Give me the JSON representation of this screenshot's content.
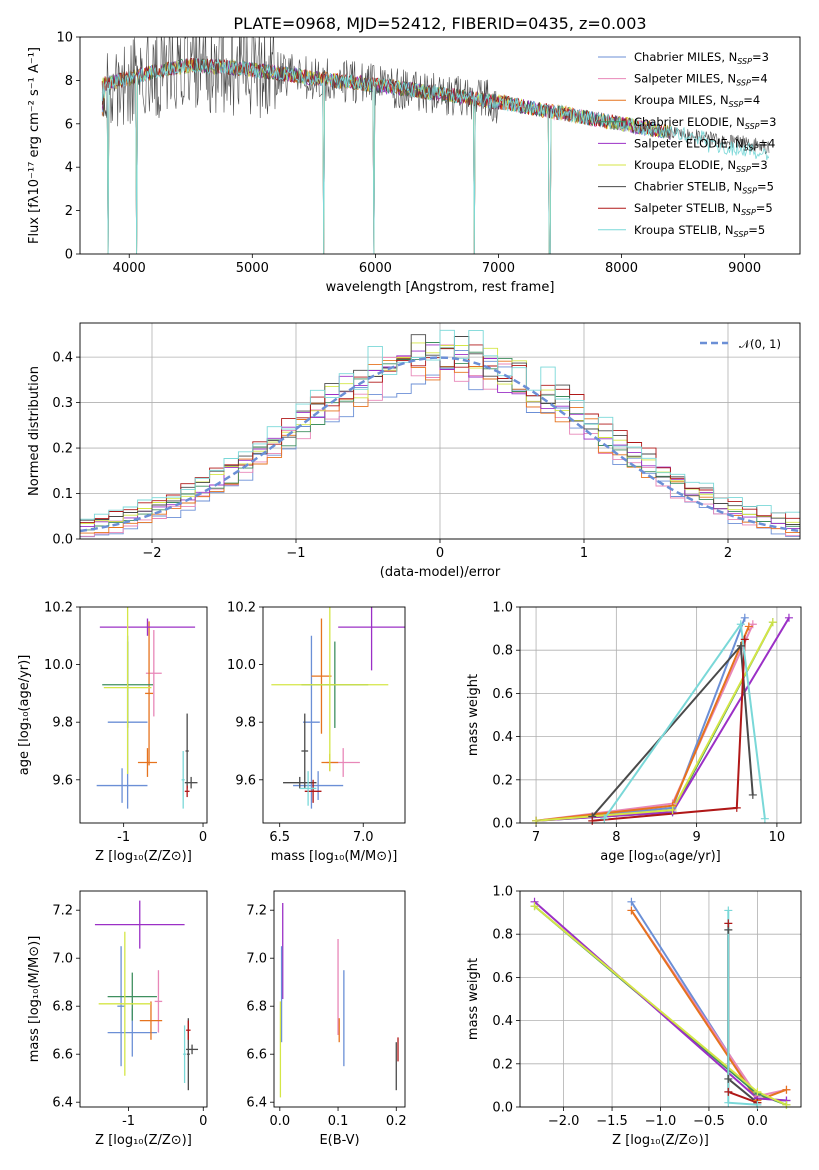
{
  "title": "PLATE=0968, MJD=52412, FIBERID=0435, z=0.003",
  "colors": [
    "#6b8fd6",
    "#e887b8",
    "#e6731e",
    "#3f8f5f",
    "#9b30c6",
    "#d4e646",
    "#4a4a4a",
    "#b01818",
    "#7ad8d8"
  ],
  "legend_names": [
    "Chabrier MILES, N_SSP=3",
    "Salpeter MILES, N_SSP=4",
    "Kroupa MILES, N_SSP=4",
    "Chabrier ELODIE, N_SSP=3",
    "Salpeter ELODIE, N_SSP=4",
    "Kroupa ELODIE, N_SSP=3",
    "Chabrier STELIB, N_SSP=5",
    "Salpeter STELIB, N_SSP=5",
    "Kroupa STELIB, N_SSP=5"
  ],
  "legend_entries": [
    {
      "pre": "Chabrier MILES, N",
      "sub": "SSP",
      "post": "=3"
    },
    {
      "pre": "Salpeter MILES, N",
      "sub": "SSP",
      "post": "=4"
    },
    {
      "pre": "Kroupa MILES, N",
      "sub": "SSP",
      "post": "=4"
    },
    {
      "pre": "Chabrier ELODIE, N",
      "sub": "SSP",
      "post": "=3"
    },
    {
      "pre": "Salpeter ELODIE, N",
      "sub": "SSP",
      "post": "=4"
    },
    {
      "pre": "Kroupa ELODIE, N",
      "sub": "SSP",
      "post": "=3"
    },
    {
      "pre": "Chabrier STELIB, N",
      "sub": "SSP",
      "post": "=5"
    },
    {
      "pre": "Salpeter STELIB, N",
      "sub": "SSP",
      "post": "=5"
    },
    {
      "pre": "Kroupa STELIB, N",
      "sub": "SSP",
      "post": "=5"
    }
  ],
  "labels": {
    "spec_x": "wavelength [Angstrom, rest frame]",
    "spec_y": "Flux [fλ10⁻¹⁷ erg cm⁻² s⁻¹ A⁻¹]",
    "hist_x": "(data-model)/error",
    "hist_y": "Normed distribution",
    "hist_legend": "𝒩(0, 1)",
    "z_axis": "Z [log₁₀(Z/Z⊙)]",
    "age_axis": "age  [log₁₀(age/yr)]",
    "mass_axis": "mass [log₁₀(M/M⊙)]",
    "ebv_axis": "E(B-V)",
    "weight_axis": "mass weight"
  },
  "chart_data": [
    {
      "type": "line",
      "panel": "spectrum",
      "xlabel": "wavelength [Angstrom, rest frame]",
      "ylabel": "Flux [fλ10⁻¹⁷ erg cm⁻² s⁻¹ A⁻¹]",
      "xlim": [
        3600,
        9450
      ],
      "ylim": [
        0,
        10
      ],
      "xticks": [
        4000,
        5000,
        6000,
        7000,
        8000,
        9000
      ],
      "yticks": [
        0,
        2,
        4,
        6,
        8,
        10
      ],
      "data_anchor_x": [
        3780,
        4000,
        4200,
        4500,
        4800,
        5000,
        5500,
        6000,
        6500,
        7000,
        7400,
        7800,
        8200,
        8600,
        9000,
        9200
      ],
      "data_anchor_y": [
        7.8,
        8.1,
        8.4,
        8.7,
        8.6,
        8.5,
        8.1,
        7.8,
        7.4,
        7.0,
        6.6,
        6.2,
        5.8,
        5.4,
        5.1,
        4.9
      ],
      "dips": [
        [
          3795,
          0
        ],
        [
          3830,
          0
        ],
        [
          4062,
          0
        ],
        [
          5580,
          0
        ],
        [
          5990,
          0
        ],
        [
          6805,
          0
        ],
        [
          7415,
          0
        ]
      ]
    },
    {
      "type": "bar",
      "panel": "residual_histogram",
      "xlabel": "(data-model)/error",
      "ylabel": "Normed distribution",
      "xlim": [
        -2.5,
        2.5
      ],
      "ylim": [
        0,
        0.475
      ],
      "xticks": [
        -2,
        -1,
        0,
        1,
        2
      ],
      "yticks": [
        0.0,
        0.1,
        0.2,
        0.3,
        0.4
      ],
      "bin_width": 0.1,
      "reference_curve": "N(0,1)"
    },
    {
      "type": "scatter",
      "panel": "Z_vs_age",
      "xlabel": "Z [log₁₀(Z/Z⊙)]",
      "ylabel": "age  [log₁₀(age/yr)]",
      "xlim": [
        -1.55,
        0.05
      ],
      "ylim": [
        9.45,
        10.2
      ],
      "xticks": [
        -1,
        0
      ],
      "yticks": [
        9.6,
        9.8,
        10.0,
        10.2
      ],
      "points": [
        {
          "series": 0,
          "x": -0.95,
          "y": 9.8,
          "xerr": 0.25,
          "yerr": 0.3
        },
        {
          "series": 0,
          "x": -1.02,
          "y": 9.58,
          "xerr": 0.32,
          "yerr": 0.06
        },
        {
          "series": 1,
          "x": -0.62,
          "y": 9.97,
          "xerr": 0.1,
          "yerr": 0.15
        },
        {
          "series": 2,
          "x": -0.7,
          "y": 9.66,
          "xerr": 0.12,
          "yerr": 0.05
        },
        {
          "series": 2,
          "x": -0.68,
          "y": 9.9,
          "xerr": 0.05,
          "yerr": 0.25
        },
        {
          "series": 3,
          "x": -0.95,
          "y": 9.93,
          "xerr": 0.32,
          "yerr": 0.15
        },
        {
          "series": 4,
          "x": -0.7,
          "y": 10.13,
          "xerr": 0.6,
          "yerr": 0.03
        },
        {
          "series": 5,
          "x": -0.95,
          "y": 9.92,
          "xerr": 0.3,
          "yerr": 0.3
        },
        {
          "series": 6,
          "x": -0.2,
          "y": 9.7,
          "xerr": 0.02,
          "yerr": 0.13
        },
        {
          "series": 6,
          "x": -0.15,
          "y": 9.59,
          "xerr": 0.08,
          "yerr": 0.02
        },
        {
          "series": 7,
          "x": -0.2,
          "y": 9.56,
          "xerr": 0.03,
          "yerr": 0.02
        },
        {
          "series": 8,
          "x": -0.25,
          "y": 9.6,
          "xerr": 0.02,
          "yerr": 0.1
        }
      ]
    },
    {
      "type": "scatter",
      "panel": "mass_vs_age",
      "xlabel": "mass [log₁₀(M/M⊙)]",
      "ylabel": "age  [log₁₀(age/yr)]",
      "xlim": [
        6.4,
        7.25
      ],
      "ylim": [
        9.45,
        10.2
      ],
      "xticks": [
        6.5,
        7.0
      ],
      "yticks": [
        9.6,
        9.8,
        10.0,
        10.2
      ],
      "points": [
        {
          "series": 0,
          "x": 6.73,
          "y": 9.58,
          "xerr": 0.15,
          "yerr": 0.05
        },
        {
          "series": 0,
          "x": 6.69,
          "y": 9.8,
          "xerr": 0.05,
          "yerr": 0.3
        },
        {
          "series": 1,
          "x": 6.88,
          "y": 9.66,
          "xerr": 0.1,
          "yerr": 0.05
        },
        {
          "series": 2,
          "x": 6.75,
          "y": 9.96,
          "xerr": 0.06,
          "yerr": 0.2
        },
        {
          "series": 2,
          "x": 6.8,
          "y": 9.66,
          "xerr": 0.05,
          "yerr": 0.03
        },
        {
          "series": 3,
          "x": 6.83,
          "y": 9.93,
          "xerr": 0.2,
          "yerr": 0.15
        },
        {
          "series": 4,
          "x": 7.05,
          "y": 10.13,
          "xerr": 0.2,
          "yerr": 0.15
        },
        {
          "series": 5,
          "x": 6.8,
          "y": 9.93,
          "xerr": 0.35,
          "yerr": 0.3
        },
        {
          "series": 6,
          "x": 6.65,
          "y": 9.7,
          "xerr": 0.02,
          "yerr": 0.13
        },
        {
          "series": 6,
          "x": 6.62,
          "y": 9.59,
          "xerr": 0.1,
          "yerr": 0.02
        },
        {
          "series": 7,
          "x": 6.7,
          "y": 9.56,
          "xerr": 0.05,
          "yerr": 0.04
        },
        {
          "series": 8,
          "x": 6.67,
          "y": 9.57,
          "xerr": 0.05,
          "yerr": 0.06
        }
      ]
    },
    {
      "type": "line",
      "panel": "age_vs_weight",
      "xlabel": "age  [log₁₀(age/yr)]",
      "ylabel": "mass weight",
      "xlim": [
        6.8,
        10.3
      ],
      "ylim": [
        0,
        1
      ],
      "xticks": [
        7,
        8,
        9,
        10
      ],
      "yticks": [
        0.0,
        0.2,
        0.4,
        0.6,
        0.8,
        1.0
      ],
      "series": [
        {
          "series": 0,
          "x": [
            7.0,
            8.7,
            9.6
          ],
          "y": [
            0.01,
            0.07,
            0.95
          ]
        },
        {
          "series": 1,
          "x": [
            7.0,
            8.7,
            9.7
          ],
          "y": [
            0.01,
            0.09,
            0.92
          ]
        },
        {
          "series": 2,
          "x": [
            7.0,
            8.7,
            9.65
          ],
          "y": [
            0.01,
            0.08,
            0.91
          ]
        },
        {
          "series": 3,
          "x": [
            7.0,
            8.7,
            9.95
          ],
          "y": [
            0.01,
            0.05,
            0.93
          ]
        },
        {
          "series": 4,
          "x": [
            7.0,
            8.7,
            10.15
          ],
          "y": [
            0.01,
            0.05,
            0.95
          ]
        },
        {
          "series": 5,
          "x": [
            7.0,
            8.7,
            9.95
          ],
          "y": [
            0.01,
            0.06,
            0.93
          ]
        },
        {
          "series": 6,
          "x": [
            7.7,
            9.55,
            9.7
          ],
          "y": [
            0.03,
            0.82,
            0.13
          ]
        },
        {
          "series": 7,
          "x": [
            7.7,
            9.5,
            9.6
          ],
          "y": [
            0.01,
            0.07,
            0.85
          ]
        },
        {
          "series": 8,
          "x": [
            7.85,
            9.55,
            9.85
          ],
          "y": [
            0.02,
            0.92,
            0.02
          ]
        }
      ]
    },
    {
      "type": "scatter",
      "panel": "Z_vs_mass",
      "xlabel": "Z [log₁₀(Z/Z⊙)]",
      "ylabel": "mass [log₁₀(M/M⊙)]",
      "xlim": [
        -1.65,
        0.05
      ],
      "ylim": [
        6.38,
        7.28
      ],
      "xticks": [
        -1,
        0
      ],
      "yticks": [
        6.4,
        6.6,
        6.8,
        7.0,
        7.2
      ],
      "points": [
        {
          "series": 0,
          "x": -0.95,
          "y": 6.69,
          "xerr": 0.33,
          "yerr": 0.1
        },
        {
          "series": 0,
          "x": -1.1,
          "y": 6.8,
          "xerr": 0.05,
          "yerr": 0.25
        },
        {
          "series": 1,
          "x": -0.6,
          "y": 6.82,
          "xerr": 0.05,
          "yerr": 0.13
        },
        {
          "series": 2,
          "x": -0.7,
          "y": 6.74,
          "xerr": 0.15,
          "yerr": 0.08
        },
        {
          "series": 3,
          "x": -0.95,
          "y": 6.84,
          "xerr": 0.33,
          "yerr": 0.1
        },
        {
          "series": 4,
          "x": -0.85,
          "y": 7.14,
          "xerr": 0.6,
          "yerr": 0.1
        },
        {
          "series": 5,
          "x": -1.05,
          "y": 6.81,
          "xerr": 0.35,
          "yerr": 0.3
        },
        {
          "series": 6,
          "x": -0.2,
          "y": 6.6,
          "xerr": 0.02,
          "yerr": 0.15
        },
        {
          "series": 6,
          "x": -0.15,
          "y": 6.62,
          "xerr": 0.08,
          "yerr": 0.02
        },
        {
          "series": 7,
          "x": -0.2,
          "y": 6.7,
          "xerr": 0.03,
          "yerr": 0.04
        },
        {
          "series": 8,
          "x": -0.25,
          "y": 6.6,
          "xerr": 0.02,
          "yerr": 0.12
        }
      ]
    },
    {
      "type": "scatter",
      "panel": "ebv_vs_mass",
      "xlabel": "E(B-V)",
      "ylabel": "",
      "xlim": [
        -0.01,
        0.215
      ],
      "ylim": [
        6.38,
        7.28
      ],
      "xticks": [
        0.0,
        0.1,
        0.2
      ],
      "yticks": [
        6.4,
        6.6,
        6.8,
        7.0,
        7.2
      ],
      "points": [
        {
          "series": 4,
          "x": 0.005,
          "y": 7.03,
          "xerr": 0,
          "yerr": 0.2
        },
        {
          "series": 0,
          "x": 0.003,
          "y": 6.85,
          "xerr": 0,
          "yerr": 0.2
        },
        {
          "series": 5,
          "x": 0.001,
          "y": 6.62,
          "xerr": 0,
          "yerr": 0.2
        },
        {
          "series": 1,
          "x": 0.1,
          "y": 6.88,
          "xerr": 0,
          "yerr": 0.2
        },
        {
          "series": 2,
          "x": 0.102,
          "y": 6.7,
          "xerr": 0,
          "yerr": 0.05
        },
        {
          "series": 0,
          "x": 0.11,
          "y": 6.75,
          "xerr": 0,
          "yerr": 0.2
        },
        {
          "series": 6,
          "x": 0.2,
          "y": 6.55,
          "xerr": 0,
          "yerr": 0.1
        },
        {
          "series": 7,
          "x": 0.203,
          "y": 6.62,
          "xerr": 0,
          "yerr": 0.05
        }
      ]
    },
    {
      "type": "line",
      "panel": "Z_vs_weight",
      "xlabel": "Z [log₁₀(Z/Z⊙)]",
      "ylabel": "mass weight",
      "xlim": [
        -2.45,
        0.45
      ],
      "ylim": [
        0,
        1
      ],
      "xticks": [
        -2.0,
        -1.5,
        -1.0,
        -0.5,
        0.0
      ],
      "yticks": [
        0.0,
        0.2,
        0.4,
        0.6,
        0.8,
        1.0
      ],
      "series": [
        {
          "series": 0,
          "x": [
            -1.3,
            0.0,
            0.3
          ],
          "y": [
            0.95,
            0.04,
            0.03
          ]
        },
        {
          "series": 1,
          "x": [
            -1.3,
            0.0,
            0.3
          ],
          "y": [
            0.91,
            0.05,
            0.08
          ]
        },
        {
          "series": 2,
          "x": [
            -1.3,
            0.0,
            0.3
          ],
          "y": [
            0.91,
            0.03,
            0.08
          ]
        },
        {
          "series": 3,
          "x": [
            -2.3,
            0.0,
            0.3
          ],
          "y": [
            0.93,
            0.06,
            0.01
          ]
        },
        {
          "series": 4,
          "x": [
            -2.3,
            0.0,
            0.3
          ],
          "y": [
            0.95,
            0.04,
            0.03
          ]
        },
        {
          "series": 5,
          "x": [
            -2.3,
            0.0,
            0.3
          ],
          "y": [
            0.93,
            0.07,
            0.01
          ]
        },
        {
          "series": 6,
          "x": [
            -0.3,
            -0.3,
            0.0
          ],
          "y": [
            0.82,
            0.13,
            0.02
          ]
        },
        {
          "series": 7,
          "x": [
            -0.3,
            -0.3,
            0.0
          ],
          "y": [
            0.85,
            0.07,
            0.02
          ]
        },
        {
          "series": 8,
          "x": [
            -0.3,
            -0.3,
            0.0
          ],
          "y": [
            0.91,
            0.02,
            0.01
          ]
        }
      ]
    }
  ]
}
